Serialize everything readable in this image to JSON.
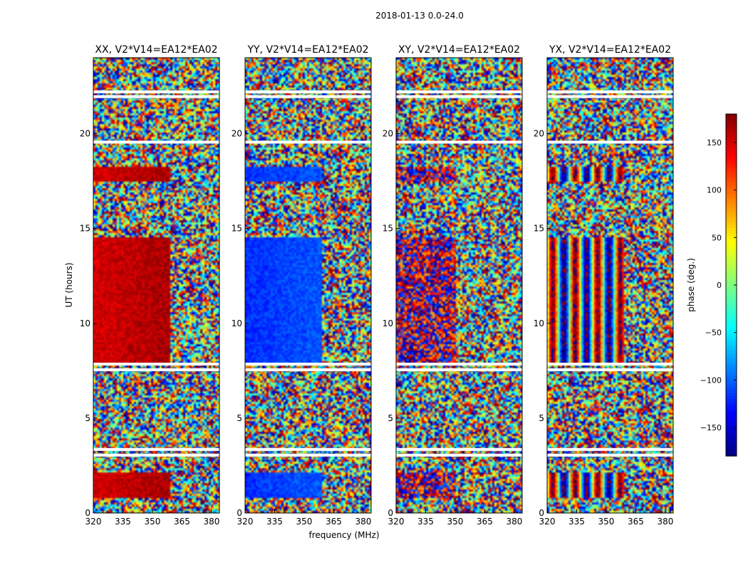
{
  "chart_data": {
    "type": "heatmap",
    "title": "2018-01-13 0.0-24.0",
    "xlabel": "frequency (MHz)",
    "ylabel": "UT (hours)",
    "xlim": [
      320,
      384
    ],
    "ylim": [
      0,
      24
    ],
    "xticks": [
      "320",
      "335",
      "350",
      "365",
      "380"
    ],
    "yticks": [
      "0",
      "5",
      "10",
      "15",
      "20"
    ],
    "colorbar": {
      "label": "phase (deg.)",
      "range": [
        -180,
        180
      ],
      "ticks": [
        "150",
        "100",
        "50",
        "0",
        "−50",
        "−100",
        "−150"
      ],
      "tick_values": [
        150,
        100,
        50,
        0,
        -50,
        -100,
        -150
      ],
      "colormap": "jet"
    },
    "panels": [
      {
        "title": "XX, V2*V14=EA12*EA02",
        "pattern": "phase-ramp",
        "base_phase": 150
      },
      {
        "title": "YY, V2*V14=EA12*EA02",
        "pattern": "phase-ramp",
        "base_phase": -120
      },
      {
        "title": "XY, V2*V14=EA12*EA02",
        "pattern": "noisy",
        "base_phase": 170
      },
      {
        "title": "YX, V2*V14=EA12*EA02",
        "pattern": "fringes",
        "base_phase": 0
      }
    ],
    "flagged_ut_hours": [
      3.05,
      3.35,
      7.55,
      7.85,
      19.55,
      21.95,
      22.2
    ]
  }
}
